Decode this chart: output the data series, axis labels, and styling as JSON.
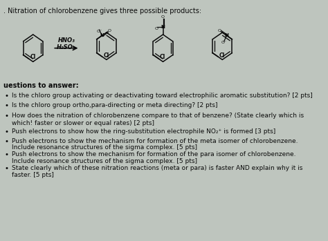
{
  "title": ". Nitration of chlorobenzene gives three possible products:",
  "background_color": "#bec5be",
  "reagents_line1": "HNO₃",
  "reagents_line2": "H₂SO₄",
  "bullet_points": [
    "Is the chloro group activating or deactivating toward electrophilic aromatic substitution? [2 pts]",
    "Is the chloro group ortho,para-directing or meta directing? [2 pts]",
    "How does the nitration of chlorobenzene compare to that of benzene? (State clearly which is\nwhich! faster or slower or equal rates) [2 pts]",
    "Push electrons to show how the ring-substitution electrophile NO₂⁺ is formed [3 pts]",
    "Push electrons to show the mechanism for formation of the meta isomer of chlorobenzene.\nInclude resonance structures of the sigma complex. [5 pts]",
    "Push electrons to show the mechanism for formation of the para isomer of chlorobenzene.\nInclude resonance structures of the sigma complex. [5 pts]",
    "State clearly which of these nitration reactions (meta or para) is faster AND explain why it is\nfaster. [5 pts]"
  ],
  "questions_header": "uestions to answer:",
  "text_color": "#0a0a0a",
  "font_size_title": 7.0,
  "font_size_bullets": 6.5,
  "font_size_header": 7.0,
  "mol_r": 0.062,
  "mol_lw": 1.1
}
